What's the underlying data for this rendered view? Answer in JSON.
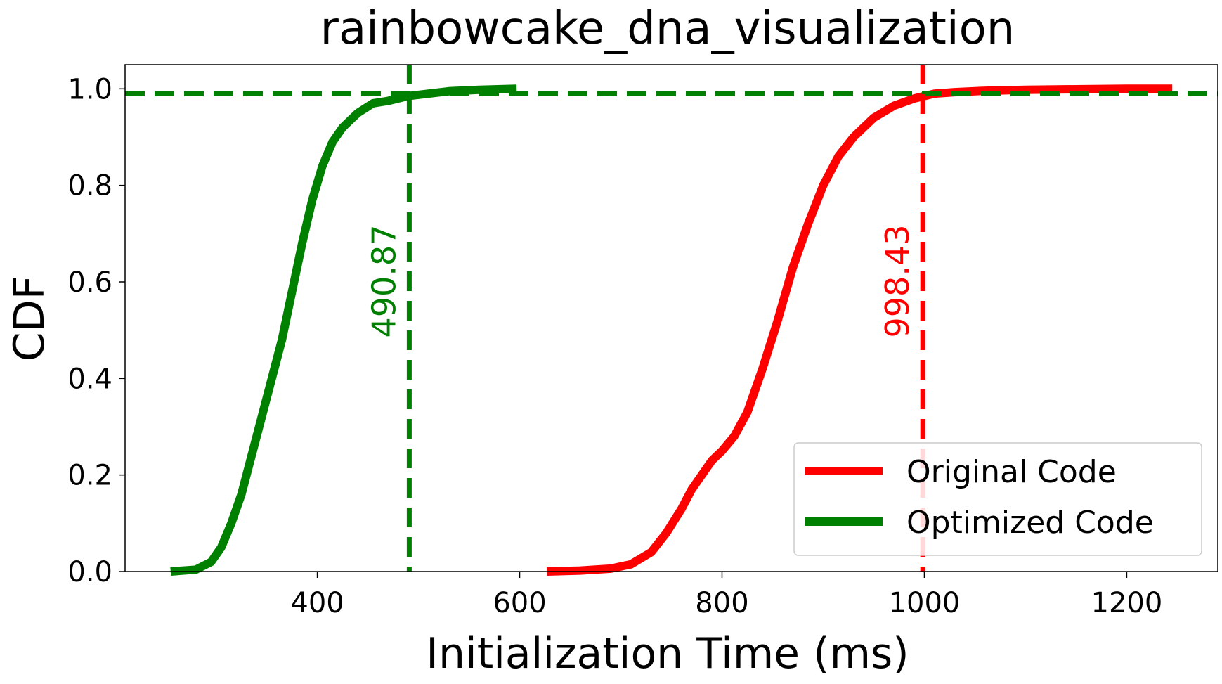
{
  "chart_data": {
    "type": "line",
    "title": "rainbowcake_dna_visualization",
    "xlabel": "Initialization Time (ms)",
    "ylabel": "CDF",
    "xlim": [
      210,
      1290
    ],
    "ylim": [
      0,
      1.05
    ],
    "x_ticks": [
      400,
      600,
      800,
      1000,
      1200
    ],
    "y_ticks": [
      0.0,
      0.2,
      0.4,
      0.6,
      0.8,
      1.0
    ],
    "x_tick_labels": [
      "400",
      "600",
      "800",
      "1000",
      "1200"
    ],
    "y_tick_labels": [
      "0.0",
      "0.2",
      "0.4",
      "0.6",
      "0.8",
      "1.0"
    ],
    "grid": false,
    "legend_position": "bottom-right",
    "series": [
      {
        "name": "Original Code",
        "color": "#ff0000",
        "x": [
          627,
          660,
          690,
          710,
          730,
          745,
          760,
          770,
          780,
          790,
          800,
          812,
          825,
          840,
          855,
          870,
          885,
          900,
          915,
          930,
          950,
          970,
          990,
          1010,
          1030,
          1060,
          1100,
          1150,
          1200,
          1245
        ],
        "y": [
          0.0,
          0.002,
          0.006,
          0.015,
          0.04,
          0.08,
          0.13,
          0.17,
          0.2,
          0.23,
          0.25,
          0.28,
          0.33,
          0.42,
          0.52,
          0.63,
          0.72,
          0.8,
          0.86,
          0.9,
          0.94,
          0.965,
          0.98,
          0.99,
          0.993,
          0.996,
          0.998,
          0.999,
          1.0,
          1.0
        ]
      },
      {
        "name": "Optimized Code",
        "color": "#008000",
        "x": [
          255,
          280,
          295,
          305,
          315,
          325,
          335,
          345,
          355,
          365,
          375,
          385,
          395,
          405,
          415,
          425,
          440,
          455,
          470,
          490,
          510,
          530,
          560,
          597
        ],
        "y": [
          0.0,
          0.004,
          0.02,
          0.05,
          0.1,
          0.16,
          0.24,
          0.32,
          0.4,
          0.48,
          0.58,
          0.68,
          0.77,
          0.84,
          0.89,
          0.92,
          0.95,
          0.97,
          0.975,
          0.985,
          0.99,
          0.995,
          0.998,
          1.0
        ]
      }
    ],
    "reference_lines": [
      {
        "orientation": "horizontal",
        "value": 0.99,
        "color": "#008000",
        "style": "dashed"
      },
      {
        "orientation": "vertical",
        "value": 490.87,
        "label": "490.87",
        "color": "#008000",
        "style": "dashed"
      },
      {
        "orientation": "vertical",
        "value": 998.43,
        "label": "998.43",
        "color": "#ff0000",
        "style": "dashed"
      }
    ]
  }
}
